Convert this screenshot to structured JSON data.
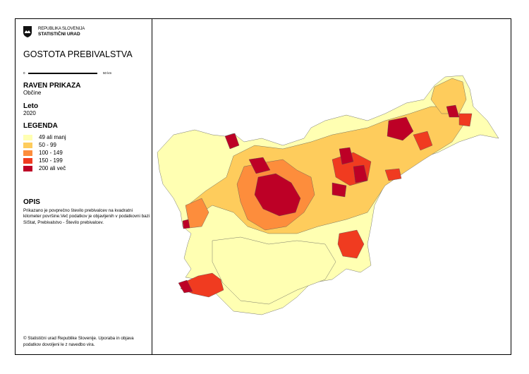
{
  "header": {
    "org_line1": "REPUBLIKA SLOVENIJA",
    "org_line2": "STATISTIČNI URAD",
    "title": "GOSTOTA PREBIVALSTVA"
  },
  "scale": {
    "start": "0",
    "end": "50 km"
  },
  "level": {
    "heading": "RAVEN PRIKAZA",
    "value": "Občine"
  },
  "year": {
    "heading": "Leto",
    "value": "2020"
  },
  "legend": {
    "heading": "LEGENDA",
    "items": [
      {
        "label": "49 ali manj",
        "color": "#ffffb2"
      },
      {
        "label": "50 - 99",
        "color": "#fecc5c"
      },
      {
        "label": "100 - 149",
        "color": "#fd8d3c"
      },
      {
        "label": "150 - 199",
        "color": "#f03b20"
      },
      {
        "label": "200 ali več",
        "color": "#bd0026"
      }
    ]
  },
  "description": {
    "heading": "OPIS",
    "text": "Prikazano je povprečno število prebivalcev na kvadratni kilometer površine.Več podatkov je objavljenih v podatkovni bazi SiStat, Prebivalstvo - Število prebivalcev."
  },
  "footer": {
    "copyright": "© Statistični urad Republike Slovenije. Uporaba in objava podatkov dovoljeni le z navedbo vira."
  },
  "map": {
    "region": "Slovenia",
    "unit": "municipalities"
  }
}
